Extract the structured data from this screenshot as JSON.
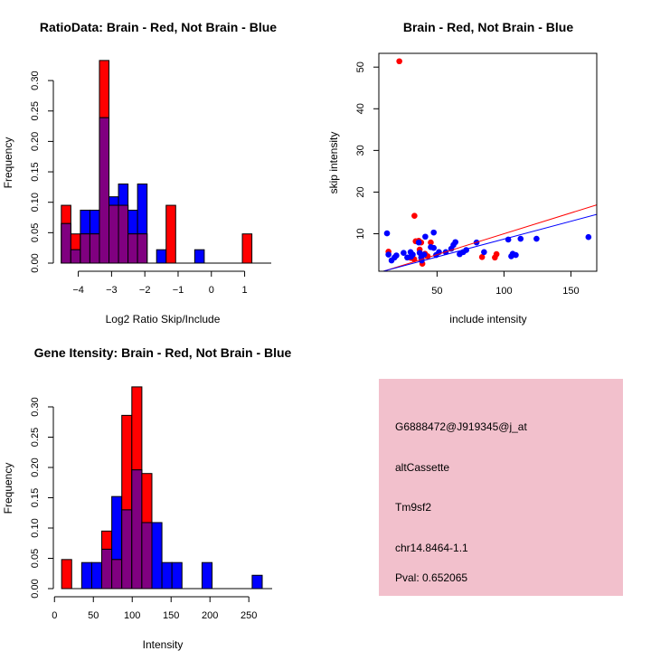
{
  "chart_data": [
    {
      "type": "bar",
      "subtype": "overlaid-histogram",
      "title": "RatioData: Brain - Red, Not Brain - Blue",
      "xlabel": "Log2 Ratio Skip/Include",
      "ylabel": "Frequency",
      "xlim": [
        -4.75,
        1.8
      ],
      "ylim": [
        0,
        0.333
      ],
      "xticks": [
        -4,
        -3,
        -2,
        -1,
        0,
        1
      ],
      "yticks": [
        "0.00",
        "0.05",
        "0.10",
        "0.15",
        "0.20",
        "0.25",
        "0.30"
      ],
      "bin_start": -4.51,
      "bin_width": 0.2864,
      "series": [
        {
          "name": "Brain",
          "color": "#ff0000",
          "values": [
            0.095,
            0.048,
            0.048,
            0.048,
            0.333,
            0.095,
            0.095,
            0.048,
            0.048,
            0,
            0,
            0.095,
            0,
            0,
            0,
            0,
            0,
            0,
            0,
            0.048
          ]
        },
        {
          "name": "Not Brain",
          "color": "#0000ff",
          "values": [
            0.065,
            0.022,
            0.087,
            0.087,
            0.239,
            0.109,
            0.13,
            0.087,
            0.13,
            0,
            0.022,
            0,
            0,
            0,
            0.022,
            0,
            0,
            0,
            0,
            0
          ]
        }
      ],
      "overlap_color": "#800080"
    },
    {
      "type": "scatter",
      "title": "Brain - Red, Not Brain - Blue",
      "xlabel": "include intensity",
      "ylabel": "skip intensity",
      "xlim": [
        6.5,
        169.3
      ],
      "ylim": [
        1.0,
        53.3
      ],
      "xticks": [
        50,
        100,
        150
      ],
      "yticks": [
        10,
        20,
        30,
        40,
        50
      ],
      "series": [
        {
          "name": "Brain",
          "color": "#ff0000",
          "points": [
            [
              21.8,
              51.4
            ],
            [
              33.1,
              14.3
            ],
            [
              13.7,
              5.7
            ],
            [
              34,
              8.2
            ],
            [
              36.3,
              8.3
            ],
            [
              37,
              6.2
            ],
            [
              38.1,
              7.9
            ],
            [
              45.3,
              7.9
            ],
            [
              32.9,
              3.9
            ],
            [
              39,
              2.8
            ],
            [
              43,
              4.6
            ],
            [
              83.6,
              4.4
            ],
            [
              93.2,
              4.3
            ],
            [
              94.4,
              5.1
            ],
            [
              30.5,
              4.2
            ],
            [
              41,
              5.2
            ]
          ],
          "fit": {
            "intercept": 0.0,
            "slope": 0.1
          }
        },
        {
          "name": "Not Brain",
          "color": "#0000ff",
          "points": [
            [
              12.6,
              10.1
            ],
            [
              13.7,
              5.0
            ],
            [
              16,
              3.6
            ],
            [
              18.2,
              4.3
            ],
            [
              19.6,
              4.8
            ],
            [
              25,
              5.4
            ],
            [
              27.7,
              4.3
            ],
            [
              30.2,
              5.6
            ],
            [
              30.6,
              4.5
            ],
            [
              31.8,
              5.0
            ],
            [
              36.3,
              7.9
            ],
            [
              37,
              5.4
            ],
            [
              38.1,
              4.3
            ],
            [
              38.5,
              3.6
            ],
            [
              40.3,
              5.0
            ],
            [
              41.2,
              9.3
            ],
            [
              45.3,
              6.8
            ],
            [
              47.5,
              10.3
            ],
            [
              47.5,
              6.6
            ],
            [
              49.3,
              4.9
            ],
            [
              51.4,
              5.6
            ],
            [
              56.5,
              5.6
            ],
            [
              60.6,
              6.4
            ],
            [
              62.2,
              7.3
            ],
            [
              63.7,
              8.0
            ],
            [
              66.9,
              5.1
            ],
            [
              69.6,
              5.6
            ],
            [
              71.8,
              6.1
            ],
            [
              79.5,
              7.9
            ],
            [
              85.1,
              5.6
            ],
            [
              103.2,
              8.6
            ],
            [
              105.4,
              4.6
            ],
            [
              106.5,
              5.2
            ],
            [
              108.8,
              4.9
            ],
            [
              112.4,
              8.8
            ],
            [
              124.3,
              8.8
            ],
            [
              163.1,
              9.2
            ]
          ],
          "fit": {
            "intercept": 0.17,
            "slope": 0.0855
          }
        }
      ]
    },
    {
      "type": "bar",
      "subtype": "overlaid-histogram",
      "title": "Gene Itensity: Brain - Red, Not Brain - Blue",
      "xlabel": "Intensity",
      "ylabel": "Frequency",
      "xlim": [
        -1,
        280
      ],
      "ylim": [
        0,
        0.333
      ],
      "xticks": [
        0,
        50,
        100,
        150,
        200,
        250
      ],
      "yticks": [
        "0.00",
        "0.05",
        "0.10",
        "0.15",
        "0.20",
        "0.25",
        "0.30"
      ],
      "bin_start": 9.2,
      "bin_width": 12.9,
      "series": [
        {
          "name": "Brain",
          "color": "#ff0000",
          "values": [
            0.048,
            0,
            0,
            0,
            0.095,
            0.048,
            0.286,
            0.333,
            0.19,
            0,
            0,
            0,
            0,
            0,
            0,
            0,
            0,
            0,
            0,
            0
          ]
        },
        {
          "name": "Not Brain",
          "color": "#0000ff",
          "values": [
            0,
            0,
            0.043,
            0.043,
            0.065,
            0.152,
            0.13,
            0.196,
            0.109,
            0.109,
            0.043,
            0.043,
            0,
            0,
            0.043,
            0,
            0,
            0,
            0,
            0.022
          ]
        }
      ],
      "overlap_color": "#800080"
    }
  ],
  "info_panel": {
    "background": "#f2c0cc",
    "probe_id": "G6888472@J919345@j_at",
    "event_type": "altCassette",
    "gene": "Tm9sf2",
    "location": "chr14.8464-1.1",
    "pval": "Pval: 0.652065",
    "pval_color": "#8b0000"
  }
}
